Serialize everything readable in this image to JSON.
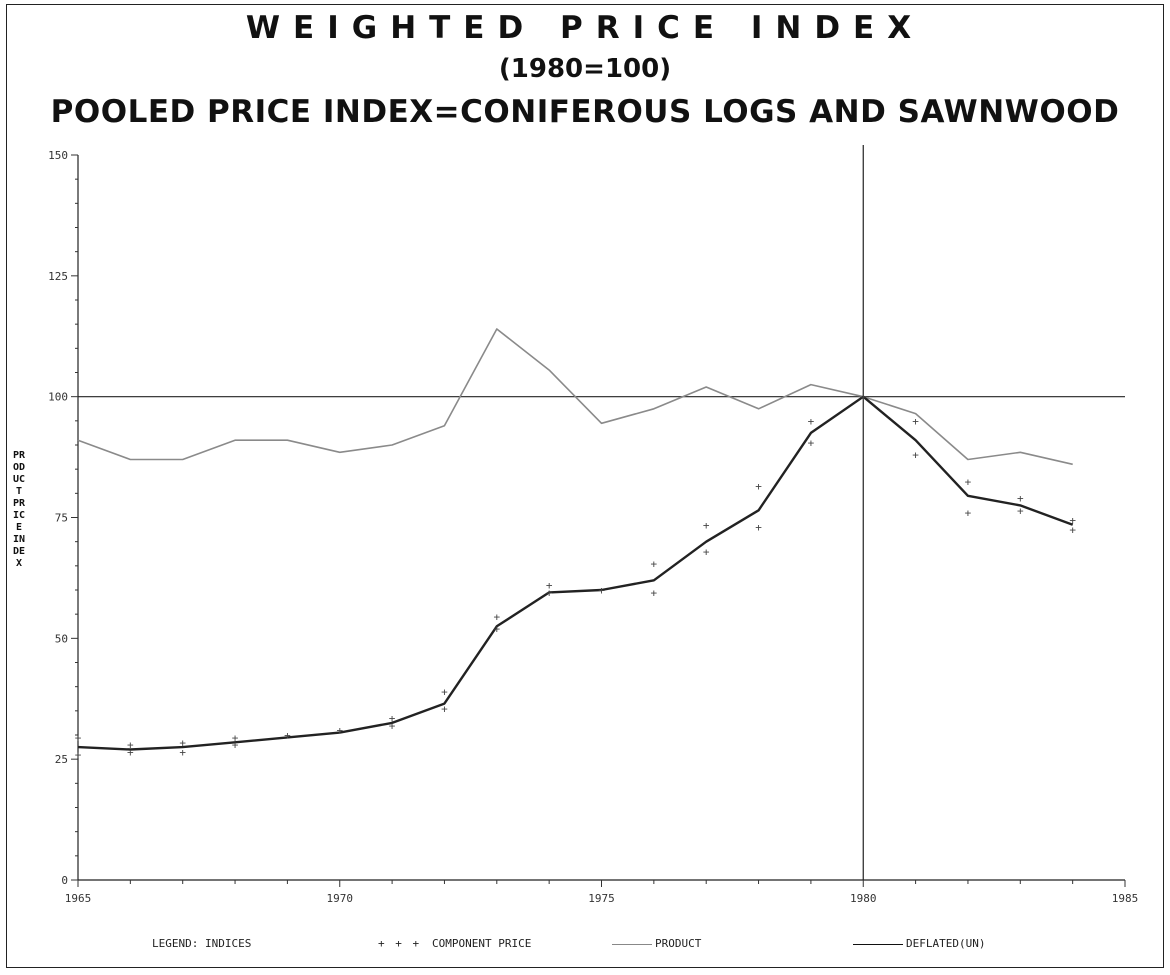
{
  "chart_data": {
    "type": "line",
    "title": "WEIGHTED PRICE INDEX",
    "subtitle": "(1980=100)",
    "subtitle2": "POOLED PRICE INDEX=CONIFEROUS LOGS AND SAWNWOOD",
    "xlabel": "",
    "ylabel": "PRODUCT PRICE INDEX",
    "xlim": [
      1965,
      1985
    ],
    "ylim": [
      0,
      150
    ],
    "x_ticks": [
      "1965",
      "1970",
      "1975",
      "1980",
      "1985"
    ],
    "y_ticks": [
      "0",
      "25",
      "50",
      "75",
      "100",
      "125",
      "150"
    ],
    "reference_lines": {
      "x": 1980,
      "y": 100
    },
    "legend": {
      "label": "LEGEND: INDICES",
      "entries": [
        "COMPONENT PRICE",
        "PRODUCT",
        "DEFLATED(UN)"
      ]
    },
    "series": [
      {
        "name": "DEFLATED(UN)",
        "x": [
          1965,
          1966,
          1967,
          1968,
          1969,
          1970,
          1971,
          1972,
          1973,
          1974,
          1975,
          1976,
          1977,
          1978,
          1979,
          1980,
          1981,
          1982,
          1983,
          1984
        ],
        "values": [
          91,
          87,
          87,
          91,
          91,
          88.5,
          90,
          94,
          114,
          105.5,
          94.5,
          97.5,
          102,
          97.5,
          102.5,
          100,
          96.5,
          87,
          88.5,
          86
        ]
      },
      {
        "name": "PRODUCT",
        "x": [
          1965,
          1966,
          1967,
          1968,
          1969,
          1970,
          1971,
          1972,
          1973,
          1974,
          1975,
          1976,
          1977,
          1978,
          1979,
          1980,
          1981,
          1982,
          1983,
          1984
        ],
        "values": [
          27.5,
          27,
          27.5,
          28.5,
          29.5,
          30.5,
          32.5,
          36.5,
          52.5,
          59.5,
          60,
          62,
          70,
          76.5,
          92.5,
          100,
          91,
          79.5,
          77.5,
          73.5
        ]
      },
      {
        "name": "COMPONENT PRICE",
        "x": [
          1965,
          1965,
          1966,
          1966,
          1967,
          1967,
          1968,
          1968,
          1969,
          1970,
          1971,
          1971,
          1972,
          1972,
          1973,
          1973,
          1974,
          1974,
          1975,
          1976,
          1976,
          1977,
          1977,
          1978,
          1978,
          1979,
          1979,
          1980,
          1981,
          1981,
          1982,
          1982,
          1983,
          1983,
          1984,
          1984
        ],
        "values": [
          29.5,
          26,
          28,
          26.5,
          28.5,
          26.5,
          29.5,
          28,
          30,
          31,
          33.5,
          32,
          39,
          35.5,
          54.5,
          52,
          61,
          59.5,
          60,
          65.5,
          59.5,
          73.5,
          68,
          81.5,
          73,
          95,
          90.5,
          100,
          95,
          88,
          82.5,
          76,
          79,
          76.5,
          74.5,
          72.5
        ]
      }
    ]
  }
}
